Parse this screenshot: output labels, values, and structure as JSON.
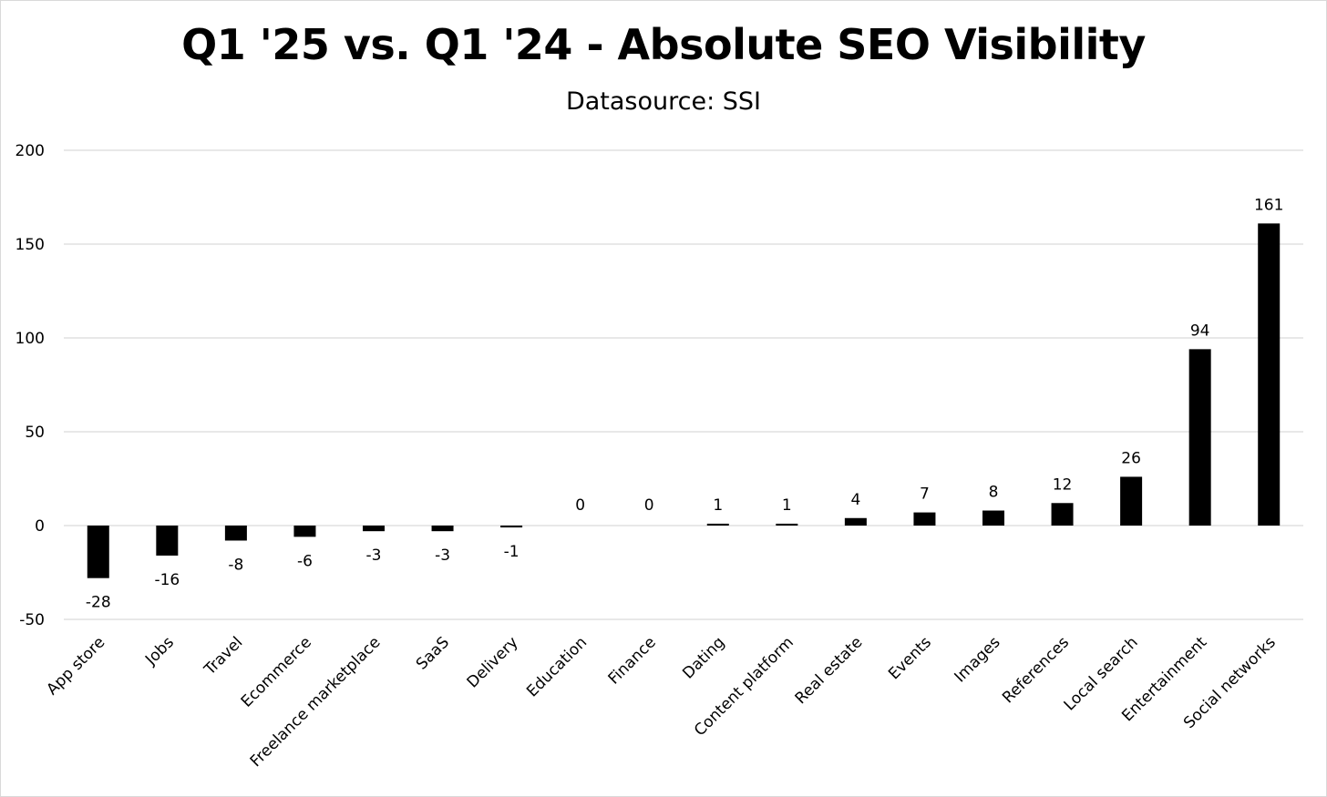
{
  "chart_data": {
    "type": "bar",
    "title": "Q1 '25 vs. Q1 '24 - Absolute SEO Visibility",
    "subtitle": "Datasource: SSI",
    "xlabel": "",
    "ylabel": "",
    "categories": [
      "App store",
      "Jobs",
      "Travel",
      "Ecommerce",
      "Freelance marketplace",
      "SaaS",
      "Delivery",
      "Education",
      "Finance",
      "Dating",
      "Content platform",
      "Real estate",
      "Events",
      "Images",
      "References",
      "Local search",
      "Entertainment",
      "Social networks"
    ],
    "values": [
      -28,
      -16,
      -8,
      -6,
      -3,
      -3,
      -1,
      0,
      0,
      1,
      1,
      4,
      7,
      8,
      12,
      26,
      94,
      161
    ],
    "value_labels": [
      "-28",
      "-16",
      "-8",
      "-6",
      "-3",
      "-3",
      "-1",
      "0",
      "0",
      "1",
      "1",
      "4",
      "7",
      "8",
      "12",
      "26",
      "94",
      "161"
    ],
    "yticks": [
      -50,
      0,
      50,
      100,
      150,
      200
    ],
    "ytick_labels": [
      "-50",
      "0",
      "50",
      "100",
      "150",
      "200"
    ],
    "ylim": [
      -50,
      200
    ],
    "grid": true,
    "legend": false,
    "bar_color": "#000000",
    "grid_color": "#d9d9d9"
  }
}
